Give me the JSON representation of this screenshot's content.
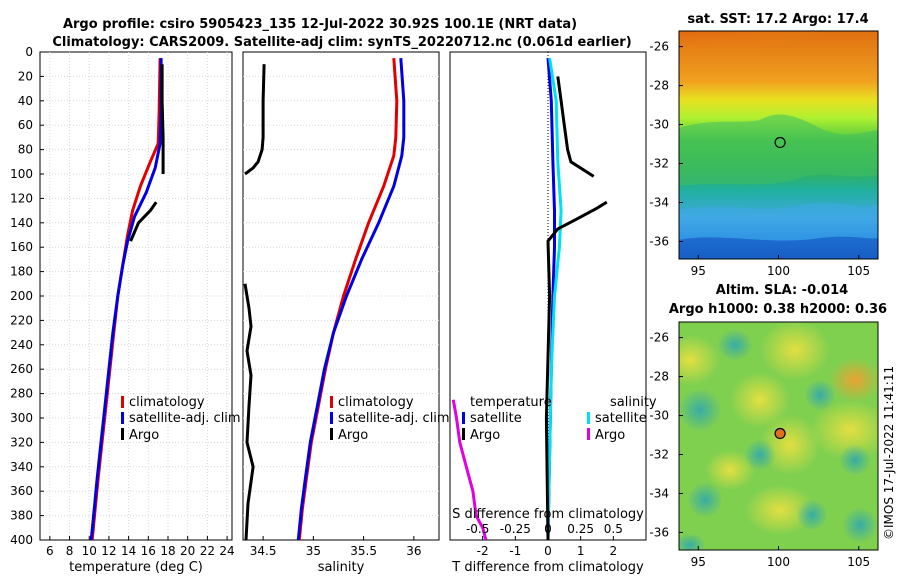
{
  "header": {
    "line1": "Argo profile: csiro 5905423_135 12-Jul-2022 30.92S 100.1E (NRT data)",
    "line2": "Climatology: CARS2009. Satellite-adj clim: synTS_20220712.nc (0.061d earlier)"
  },
  "stamp": "©IMOS 17-Jul-2022 11:41:11",
  "colors": {
    "clim": "#e00000",
    "sat": "#0000e0",
    "argo": "#000000",
    "sal_sat": "#00e0f0",
    "sal_argo": "#e000e0",
    "marker": "#e07020"
  },
  "chart_data": [
    {
      "type": "line",
      "name": "temperature",
      "xlabel": "temperature (deg C)",
      "ylabel": "",
      "xlim": [
        5,
        24.5
      ],
      "ylim": [
        0,
        400
      ],
      "xticks": [
        6,
        8,
        10,
        12,
        14,
        16,
        18,
        20,
        22,
        24
      ],
      "yticks": [
        0,
        20,
        40,
        60,
        80,
        100,
        120,
        140,
        160,
        180,
        200,
        220,
        240,
        260,
        280,
        300,
        320,
        340,
        360,
        380,
        400
      ],
      "legend": [
        "climatology",
        "satellite-adj. clim",
        "Argo"
      ],
      "series": [
        {
          "name": "climatology",
          "color": "#e00000",
          "x": [
            17.2,
            17.1,
            17.0,
            16.2,
            15.2,
            14.4,
            13.9,
            13.4,
            12.9,
            12.5,
            12.1,
            11.7,
            11.3,
            10.9,
            10.6,
            10.3
          ],
          "y": [
            5,
            50,
            75,
            90,
            110,
            130,
            150,
            175,
            200,
            230,
            260,
            290,
            320,
            350,
            375,
            400
          ]
        },
        {
          "name": "satellite-adj. clim",
          "color": "#0000e0",
          "x": [
            17.3,
            17.3,
            17.2,
            16.7,
            15.8,
            14.6,
            13.9,
            13.4,
            12.9,
            12.4,
            12.0,
            11.6,
            11.2,
            10.8,
            10.5,
            10.2
          ],
          "y": [
            5,
            50,
            75,
            95,
            115,
            135,
            155,
            175,
            200,
            230,
            260,
            290,
            320,
            350,
            375,
            400
          ]
        },
        {
          "name": "Argo",
          "color": "#000000",
          "x": [
            17.4,
            17.4,
            17.5,
            17.5
          ],
          "y": [
            10,
            40,
            70,
            100
          ],
          "x2": [
            16.8,
            16.2,
            15.0,
            14.2
          ],
          "y2": [
            123,
            130,
            140,
            155
          ]
        }
      ]
    },
    {
      "type": "line",
      "name": "salinity",
      "xlabel": "salinity",
      "ylabel": "",
      "xlim": [
        34.3,
        36.25
      ],
      "ylim": [
        0,
        400
      ],
      "xticks": [
        34.5,
        35,
        35.5,
        36
      ],
      "legend": [
        "climatology",
        "satellite-adj. clim",
        "Argo"
      ],
      "series": [
        {
          "name": "climatology",
          "color": "#e00000",
          "x": [
            35.8,
            35.83,
            35.82,
            35.8,
            35.7,
            35.55,
            35.42,
            35.3,
            35.2,
            35.12,
            35.05,
            34.98,
            34.93,
            34.89,
            34.86
          ],
          "y": [
            5,
            40,
            70,
            85,
            110,
            140,
            170,
            200,
            230,
            260,
            290,
            320,
            350,
            375,
            400
          ]
        },
        {
          "name": "satellite-adj. clim",
          "color": "#0000e0",
          "x": [
            35.87,
            35.9,
            35.9,
            35.88,
            35.8,
            35.65,
            35.48,
            35.33,
            35.2,
            35.11,
            35.04,
            34.97,
            34.92,
            34.88,
            34.85
          ],
          "y": [
            5,
            40,
            70,
            85,
            110,
            140,
            170,
            200,
            230,
            260,
            290,
            320,
            350,
            375,
            400
          ]
        },
        {
          "name": "Argo",
          "color": "#000000",
          "x": [
            34.51,
            34.5,
            34.5,
            34.49,
            34.45,
            34.4,
            34.32
          ],
          "y": [
            10,
            40,
            70,
            80,
            90,
            95,
            100
          ],
          "x2": [
            34.32,
            34.36,
            34.38,
            34.34,
            34.38,
            34.36,
            34.34,
            34.4,
            34.35,
            34.33
          ],
          "y2": [
            190,
            210,
            225,
            245,
            265,
            290,
            320,
            340,
            370,
            400
          ]
        }
      ]
    },
    {
      "type": "line",
      "name": "difference",
      "xlabel": "T difference from climatology",
      "x2label": "S difference from climatology",
      "ylabel": "",
      "xlim": [
        -3,
        3
      ],
      "ylim": [
        0,
        400
      ],
      "xticks": [
        -2,
        -1,
        0,
        1,
        2
      ],
      "x2ticks": [
        "-0.5",
        "-0.25",
        "0",
        "0.25",
        "0.5"
      ],
      "legend_left": [
        "temperature",
        "satellite",
        "Argo"
      ],
      "legend_right": [
        "salinity",
        "satellite",
        "Argo"
      ],
      "series": [
        {
          "name": "temperature satellite",
          "color": "#0000e0",
          "x": [
            0.0,
            0.1,
            0.15,
            0.2,
            0.2,
            0.15,
            0.1,
            0.05,
            0.0
          ],
          "y": [
            5,
            40,
            90,
            130,
            160,
            200,
            260,
            330,
            400
          ]
        },
        {
          "name": "salinity satellite",
          "color": "#00e0f0",
          "x": [
            0.05,
            0.25,
            0.3,
            0.4,
            0.35,
            0.2,
            0.1,
            0.05,
            0.0
          ],
          "y": [
            5,
            40,
            90,
            130,
            160,
            200,
            260,
            330,
            400
          ]
        },
        {
          "name": "temperature Argo",
          "color": "#000000",
          "x": [
            0.3,
            0.4,
            0.5,
            0.6,
            0.7,
            1.4
          ],
          "y": [
            20,
            40,
            60,
            80,
            90,
            102
          ],
          "x2": [
            1.8,
            1.5,
            0.8,
            0.3,
            0.0,
            0.05,
            -0.05,
            0.0
          ],
          "y2": [
            123,
            128,
            138,
            145,
            155,
            200,
            300,
            400
          ]
        },
        {
          "name": "salinity Argo",
          "color": "#e000e0",
          "x": [
            -2.9,
            -2.8,
            -2.7,
            -2.5,
            -2.3,
            -2.2,
            -2.0,
            -1.9
          ],
          "y": [
            285,
            300,
            320,
            340,
            360,
            380,
            390,
            400
          ]
        }
      ]
    },
    {
      "type": "heatmap",
      "name": "satellite SST map",
      "title": "sat. SST: 17.2  Argo: 17.4",
      "xticks": [
        95,
        100,
        105
      ],
      "yticks": [
        -26,
        -28,
        -30,
        -32,
        -34,
        -36
      ],
      "xlim": [
        93.8,
        106.2
      ],
      "ylim": [
        -36.9,
        -25.2
      ],
      "marker": {
        "lon": 100.1,
        "lat": -30.92
      }
    },
    {
      "type": "heatmap",
      "name": "altimetry SLA map",
      "title_line1": "Altim. SLA: -0.014",
      "title_line2": "Argo h1000: 0.38  h2000: 0.36",
      "xticks": [
        95,
        100,
        105
      ],
      "yticks": [
        -26,
        -28,
        -30,
        -32,
        -34,
        -36
      ],
      "xlim": [
        93.8,
        106.2
      ],
      "ylim": [
        -36.9,
        -25.2
      ],
      "marker": {
        "lon": 100.1,
        "lat": -30.92
      }
    }
  ]
}
